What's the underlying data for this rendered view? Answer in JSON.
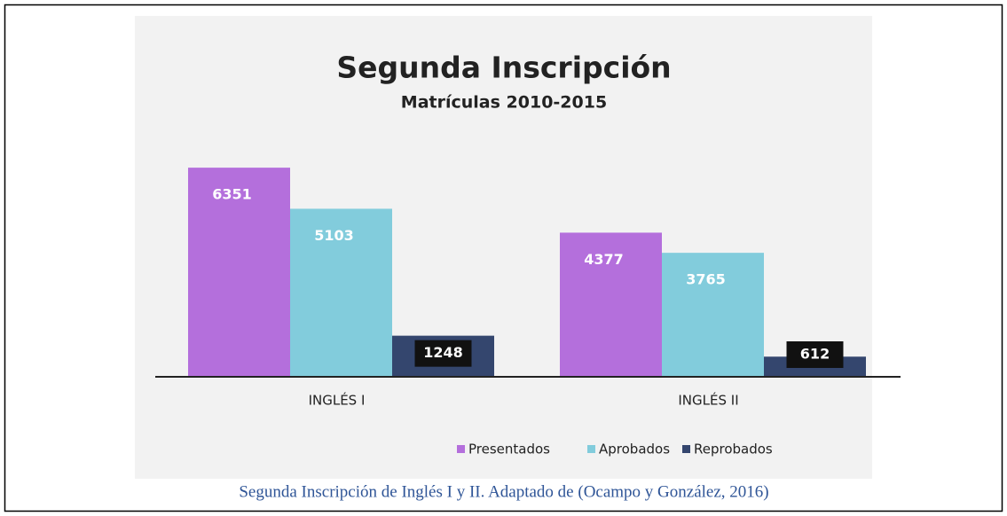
{
  "chart_data": {
    "type": "bar",
    "title": "Segunda Inscripción",
    "subtitle": "Matrículas 2010-2015",
    "categories": [
      "INGLÉS I",
      "INGLÉS II"
    ],
    "series": [
      {
        "name": "Presentados",
        "color": "#b46fdc",
        "values": [
          6351,
          4377
        ]
      },
      {
        "name": "Aprobados",
        "color": "#82ccdc",
        "values": [
          5103,
          3765
        ]
      },
      {
        "name": "Reprobados",
        "color": "#34466e",
        "values": [
          1248,
          612
        ]
      }
    ],
    "ylim": [
      0,
      7000
    ],
    "legend": "bottom"
  },
  "caption": "Segunda Inscripción de Inglés I y II. Adaptado de (Ocampo y González, 2016)"
}
